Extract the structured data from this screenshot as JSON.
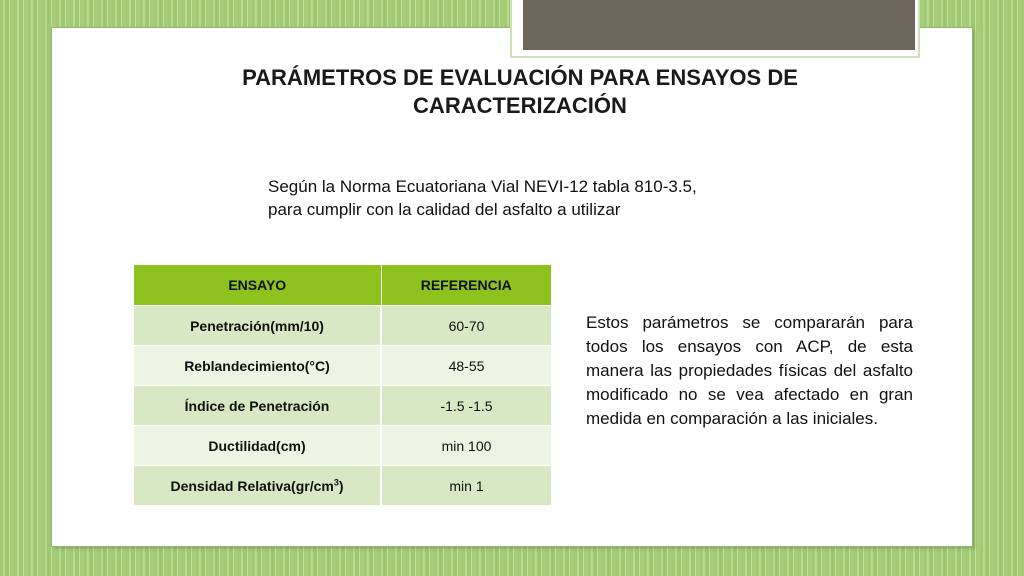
{
  "slide": {
    "title": "PARÁMETROS DE EVALUACIÓN PARA ENSAYOS DE CARACTERIZACIÓN",
    "intro_line1": "Según la Norma Ecuatoriana Vial NEVI-12 tabla 810-3.5,",
    "intro_line2": "para cumplir con la calidad del asfalto a utilizar",
    "side_note": "Estos parámetros se compararán para todos los ensayos con ACP, de esta manera las propiedades físicas del asfalto modificado no se vea afectado en gran medida en comparación a las iniciales."
  },
  "table": {
    "headers": [
      "ENSAYO",
      "REFERENCIA"
    ],
    "rows": [
      {
        "ensayo": "Penetración(mm/10)",
        "referencia": "60-70"
      },
      {
        "ensayo": "Reblandecimiento(°C)",
        "referencia": "48-55"
      },
      {
        "ensayo": "Índice de Penetración",
        "referencia": "-1.5 -1.5"
      },
      {
        "ensayo": "Ductilidad(cm)",
        "referencia": "min 100"
      },
      {
        "ensayo_main": "Densidad Relativa(gr/cm",
        "ensayo_sup": "3",
        "ensayo_end": ")",
        "referencia": "min 1"
      }
    ]
  },
  "colors": {
    "header_green": "#8dc21f",
    "row_odd": "#d8e7c4",
    "row_even": "#edf4e4",
    "background_green": "#a9cf7e"
  }
}
